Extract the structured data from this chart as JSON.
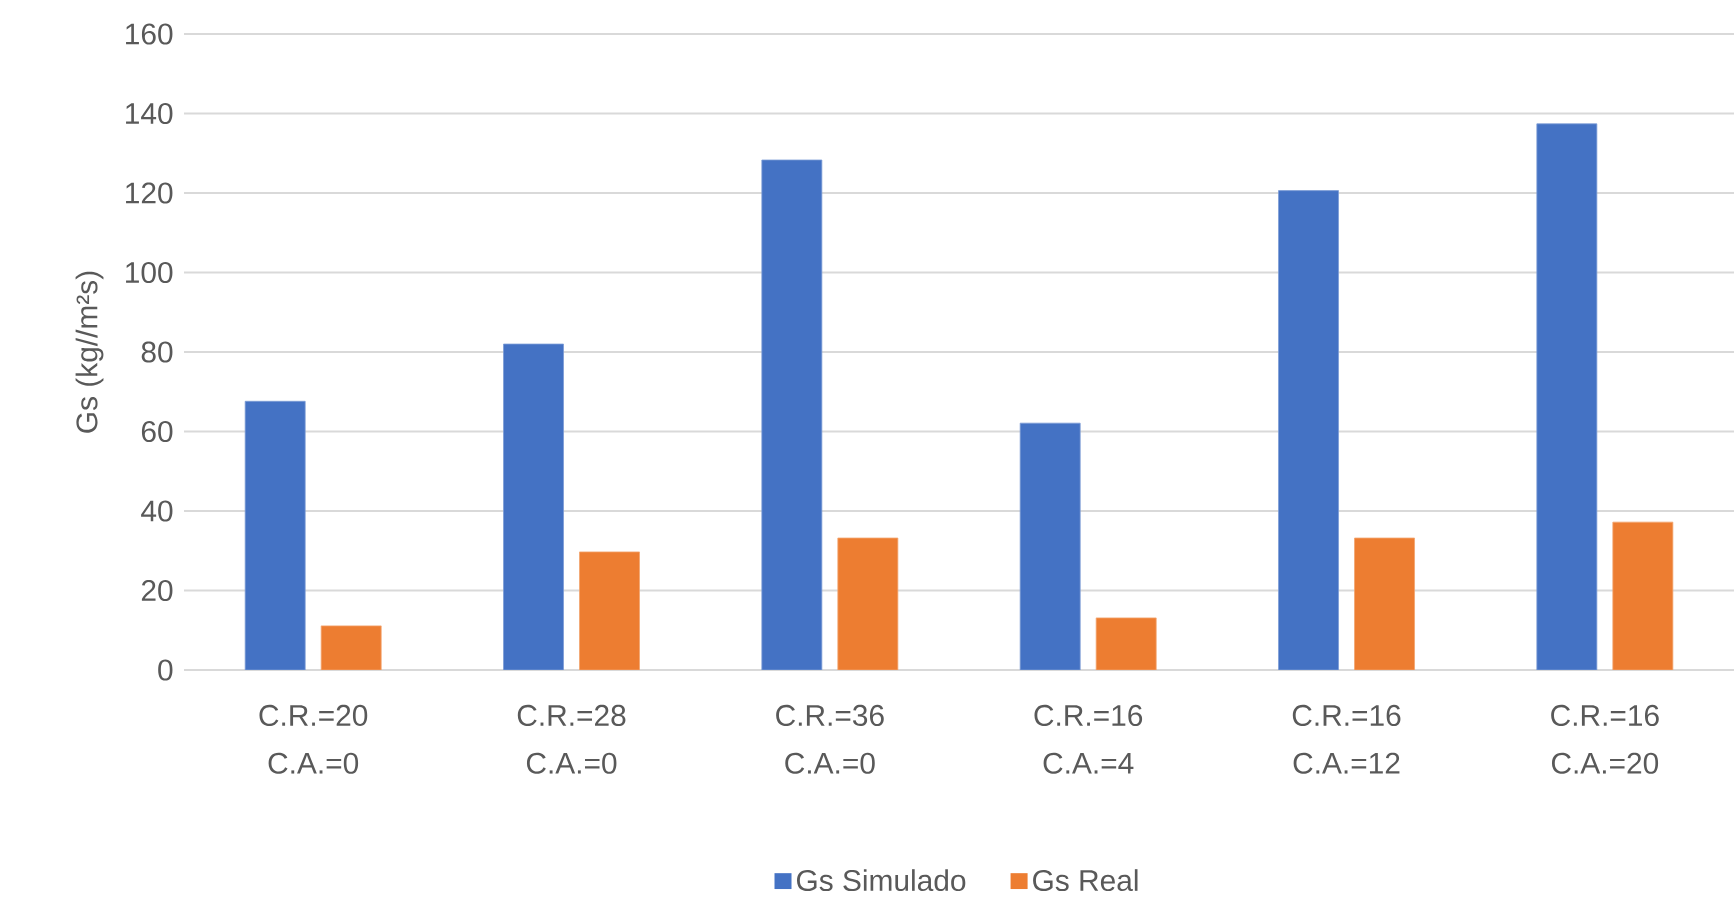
{
  "chart_data": {
    "type": "bar",
    "ylabel": "Gs (kg//m²s)",
    "categories": [
      "C.R.=20 C.A.=0",
      "C.R.=28 C.A.=0",
      "C.R.=36 C.A.=0",
      "C.R.=16 C.A.=4",
      "C.R.=16 C.A.=12",
      "C.R.=16 C.A.=20"
    ],
    "series": [
      {
        "name": "Gs Simulado",
        "color": "#4472c4",
        "values": [
          67.6,
          82.0,
          128.3,
          62.1,
          120.6,
          137.4
        ]
      },
      {
        "name": "Gs Real",
        "color": "#ed7d31",
        "values": [
          11.1,
          29.7,
          33.2,
          13.1,
          33.2,
          37.2
        ]
      }
    ],
    "ylim": [
      0,
      160
    ],
    "yticks": [
      0,
      20,
      40,
      60,
      80,
      100,
      120,
      140,
      160
    ],
    "grid": "y",
    "legend": "bottom"
  }
}
